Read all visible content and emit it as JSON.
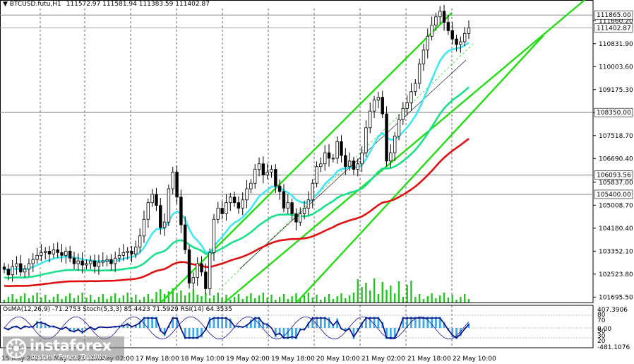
{
  "header": {
    "symbol": "BTCUSD.futu,H1",
    "ohlc": "111572.97 111581.94 111383.59 111402.87"
  },
  "indicator_header": {
    "macd": "OsMA(12,26,9) -71.2753",
    "stoch": "Stoch(5,3,3) 85.4423 71.5929",
    "rsi": "RSI(14) 64.3535"
  },
  "watermark": {
    "name": "instaforex",
    "tagline": "Instant Forex Trading"
  },
  "colors": {
    "candle": "#000000",
    "ema_fast": "#3ee8f5",
    "ema_mid": "#19e08a",
    "ema_slow": "#e01010",
    "channel": "#22dd11",
    "volume": "#22c422",
    "osma": "#3fa9e8",
    "stoch_main": "#1010a0",
    "stoch_signal": "#707070",
    "rsi": "#000080"
  },
  "chart_data": {
    "type": "candlestick",
    "price_axis_ticks": [
      "111660.20",
      "110831.90",
      "110003.60",
      "109175.30",
      "108346.00",
      "107518.70",
      "106690.40",
      "105837.00",
      "105008.70",
      "104180.40",
      "103352.10",
      "102523.80",
      "101695.50"
    ],
    "price_ylim": [
      101500,
      112100
    ],
    "horizontal_levels": [
      {
        "label": "111865.00",
        "value": 111865.0
      },
      {
        "label": "111402.87",
        "value": 111402.87,
        "current": true
      },
      {
        "label": "108350.00",
        "value": 108350.0
      },
      {
        "label": "106093.56",
        "value": 106093.56
      },
      {
        "label": "105400.00",
        "value": 105400.0
      }
    ],
    "time_axis_labels": [
      "15 May 2025",
      "16 May 2025 18:00",
      "17 May 02:00",
      "17 May 18:00",
      "18 May 10:00",
      "19 May 02:00",
      "19 May 18:00",
      "20 May 10:00",
      "21 May 02:00",
      "21 May 18:00",
      "22 May 10:00"
    ],
    "oscillator_axis_ticks": [
      "407.3906",
      "80",
      "70",
      "0.00",
      "50",
      "30",
      "20",
      "-481.1076"
    ],
    "candles_close": [
      102700,
      102500,
      102800,
      102900,
      102600,
      102700,
      102900,
      103050,
      103200,
      103300,
      103350,
      103250,
      103400,
      103300,
      103200,
      103350,
      103100,
      102900,
      103000,
      102850,
      102900,
      103000,
      102800,
      102950,
      103000,
      103050,
      102900,
      103100,
      103200,
      103300,
      103350,
      103250,
      103500,
      103900,
      104500,
      105100,
      105400,
      105000,
      104200,
      104400,
      105600,
      106200,
      105300,
      104300,
      103400,
      102200,
      102400,
      102900,
      102600,
      102000,
      103300,
      104500,
      104900,
      104700,
      105100,
      105300,
      105100,
      104900,
      105200,
      105600,
      105800,
      106300,
      106500,
      106100,
      106200,
      106300,
      105700,
      105500,
      104900,
      105100,
      104700,
      104400,
      104700,
      104900,
      105200,
      105800,
      106400,
      106500,
      106900,
      106700,
      106700,
      107300,
      106800,
      106400,
      106600,
      106300,
      106500,
      106900,
      107800,
      108400,
      108800,
      108900,
      108300,
      106600,
      106900,
      107500,
      108100,
      108500,
      108700,
      109100,
      109400,
      110100,
      110600,
      111100,
      111500,
      111800,
      112000,
      111600,
      111300,
      111000,
      110800,
      110900,
      111200,
      111400
    ]
  }
}
